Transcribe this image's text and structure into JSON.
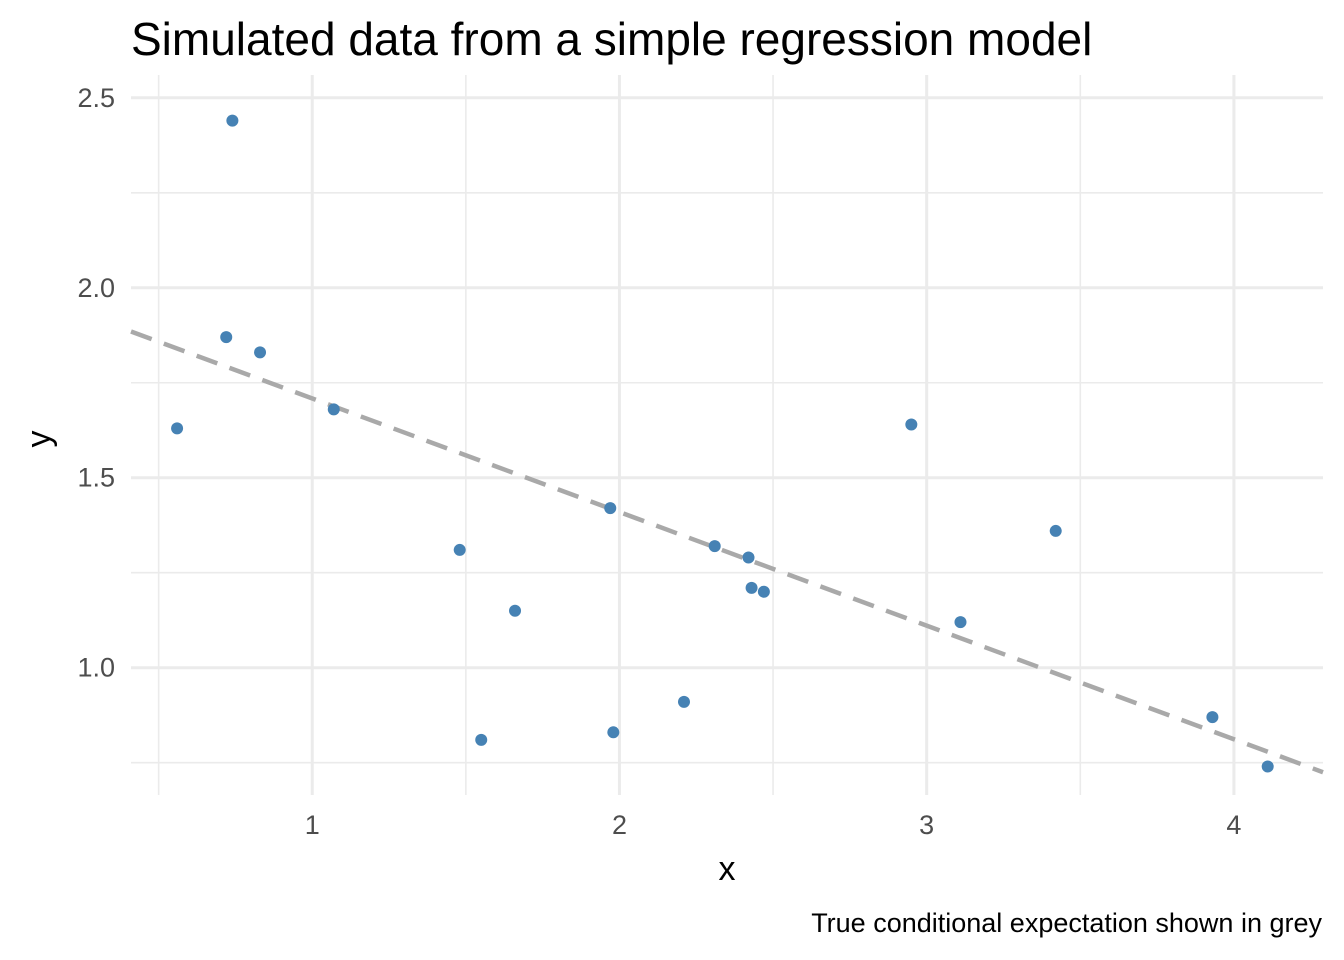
{
  "chart_data": {
    "type": "scatter",
    "title": "Simulated data from a simple regression model",
    "xlabel": "x",
    "ylabel": "y",
    "caption": "True conditional expectation shown in grey",
    "xlim": [
      0.41,
      4.29
    ],
    "ylim": [
      0.665,
      2.56
    ],
    "x_ticks": [
      1,
      2,
      3,
      4
    ],
    "x_tick_labels": [
      "1",
      "2",
      "3",
      "4"
    ],
    "y_ticks": [
      1.0,
      1.5,
      2.0,
      2.5
    ],
    "y_tick_labels": [
      "1.0",
      "1.5",
      "2.0",
      "2.5"
    ],
    "grid": true,
    "legend": "none",
    "colors": {
      "points": "#4682b4",
      "line": "#a9a9a9",
      "grid": "#ebebeb"
    },
    "series": [
      {
        "type": "scatter",
        "x": [
          0.56,
          0.72,
          0.74,
          0.83,
          1.07,
          1.48,
          1.55,
          1.66,
          1.97,
          1.98,
          2.21,
          2.31,
          2.42,
          2.43,
          2.47,
          2.95,
          3.11,
          3.42,
          3.93,
          4.11
        ],
        "y": [
          1.63,
          1.87,
          2.44,
          1.83,
          1.68,
          1.31,
          0.81,
          1.15,
          1.42,
          0.83,
          0.91,
          1.32,
          1.29,
          1.21,
          1.2,
          1.64,
          1.12,
          1.36,
          0.87,
          0.74
        ]
      },
      {
        "type": "line",
        "style": "dashed",
        "x": [
          0.41,
          4.29
        ],
        "y": [
          1.885,
          0.725
        ]
      }
    ]
  }
}
